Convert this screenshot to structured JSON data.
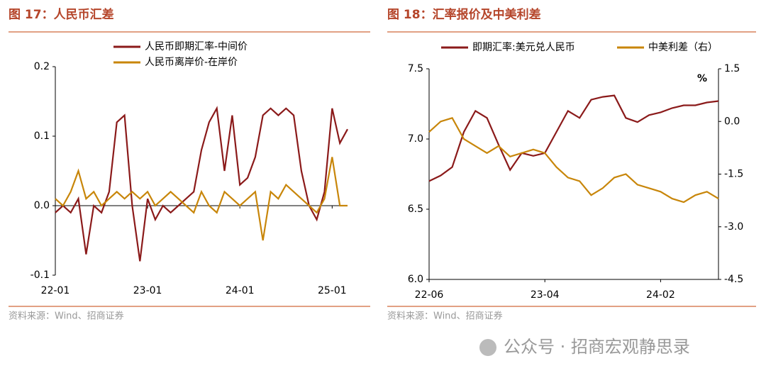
{
  "chart_data": [
    {
      "type": "line",
      "title": "图 17：人民币汇差",
      "source": "资料来源：Wind、招商证券",
      "categories": [
        "22-01",
        null,
        null,
        null,
        null,
        null,
        null,
        null,
        null,
        null,
        null,
        null,
        "23-01",
        null,
        null,
        null,
        null,
        null,
        null,
        null,
        null,
        null,
        null,
        null,
        "24-01",
        null,
        null,
        null,
        null,
        null,
        null,
        null,
        null,
        null,
        null,
        null,
        "25-01",
        null,
        null
      ],
      "series": [
        {
          "name": "人民币即期汇率-中间价",
          "color": "#8b1a1a",
          "values": [
            -0.01,
            0.0,
            -0.01,
            0.01,
            -0.07,
            0.0,
            -0.01,
            0.02,
            0.12,
            0.13,
            0.0,
            -0.08,
            0.01,
            -0.02,
            0.0,
            -0.01,
            0.0,
            0.01,
            0.02,
            0.08,
            0.12,
            0.14,
            0.05,
            0.13,
            0.03,
            0.04,
            0.07,
            0.13,
            0.14,
            0.13,
            0.14,
            0.13,
            0.05,
            0.0,
            -0.02,
            0.02,
            0.14,
            0.09,
            0.11
          ]
        },
        {
          "name": "人民币离岸价-在岸价",
          "color": "#c8860a",
          "values": [
            0.01,
            0.0,
            0.02,
            0.05,
            0.01,
            0.02,
            0.0,
            0.01,
            0.02,
            0.01,
            0.02,
            0.01,
            0.02,
            0.0,
            0.01,
            0.02,
            0.01,
            0.0,
            -0.01,
            0.02,
            0.0,
            -0.01,
            0.02,
            0.01,
            0.0,
            0.01,
            0.02,
            -0.05,
            0.02,
            0.01,
            0.03,
            0.02,
            0.01,
            0.0,
            -0.01,
            0.01,
            0.07,
            0.0,
            0.0
          ]
        }
      ],
      "ylim": [
        -0.1,
        0.2
      ],
      "yticks": [
        -0.1,
        {
          "value": 0,
          "label": "0.0"
        },
        0.1,
        0.2
      ],
      "legend": "top"
    },
    {
      "type": "line",
      "title": "图 18：汇率报价及中美利差",
      "source": "资料来源：Wind、招商证券",
      "categories": [
        "22-06",
        null,
        null,
        null,
        null,
        null,
        null,
        null,
        null,
        null,
        "23-04",
        null,
        null,
        null,
        null,
        null,
        null,
        null,
        null,
        null,
        "24-02",
        null,
        null,
        null,
        null,
        null
      ],
      "series": [
        {
          "name": "即期汇率:美元兑人民币",
          "color": "#8b1a1a",
          "values": [
            6.7,
            6.74,
            6.8,
            7.05,
            7.2,
            7.15,
            6.96,
            6.78,
            6.9,
            6.88,
            6.9,
            7.05,
            7.2,
            7.15,
            7.28,
            7.3,
            7.31,
            7.15,
            7.12,
            7.17,
            7.19,
            7.22,
            7.24,
            7.24,
            7.26,
            7.27
          ]
        },
        {
          "name": "中美利差（右）",
          "color": "#c8860a",
          "axis": "y2",
          "values": [
            -0.3,
            0.0,
            0.1,
            -0.5,
            -0.7,
            -0.9,
            -0.7,
            -1.0,
            -0.9,
            -0.8,
            -0.9,
            -1.3,
            -1.6,
            -1.7,
            -2.1,
            -1.9,
            -1.6,
            -1.5,
            -1.8,
            -1.9,
            -2.0,
            -2.2,
            -2.3,
            -2.1,
            -2.0,
            -2.2
          ]
        }
      ],
      "ylim": [
        6.0,
        7.5
      ],
      "yticks": [
        {
          "value": 6,
          "label": "6.0"
        },
        6.5,
        {
          "value": 7,
          "label": "7.0"
        },
        7.5
      ],
      "y2lim": [
        -4.5,
        1.5
      ],
      "y2ticks": [
        -4.5,
        {
          "value": -3,
          "label": "-3.0"
        },
        -1.5,
        {
          "value": 0,
          "label": "0.0"
        },
        1.5
      ],
      "y2_label": "%",
      "legend": "top"
    }
  ],
  "watermark": "公众号 · 招商宏观静思录"
}
